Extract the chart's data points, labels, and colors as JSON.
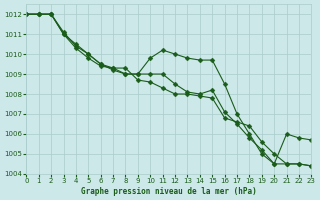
{
  "title": "Graphe pression niveau de la mer (hPa)",
  "bg_color": "#cce8e8",
  "grid_color": "#aacccc",
  "line_color": "#1a5c1a",
  "x_min": 0,
  "x_max": 23,
  "y_min": 1004,
  "y_max": 1012.5,
  "x_ticks": [
    0,
    1,
    2,
    3,
    4,
    5,
    6,
    7,
    8,
    9,
    10,
    11,
    12,
    13,
    14,
    15,
    16,
    17,
    18,
    19,
    20,
    21,
    22,
    23
  ],
  "y_ticks": [
    1004,
    1005,
    1006,
    1007,
    1008,
    1009,
    1010,
    1011,
    1012
  ],
  "line1": {
    "x": [
      0,
      1,
      2,
      3,
      4,
      5,
      6,
      7,
      8,
      9,
      10,
      11,
      12,
      13,
      14,
      15,
      16,
      17,
      18,
      19,
      20,
      21,
      22,
      23
    ],
    "y": [
      1012,
      1012,
      1012,
      1011.0,
      1010.5,
      1010.0,
      1009.5,
      1009.2,
      1009.0,
      1009.0,
      1009.8,
      1010.2,
      1010.0,
      1009.8,
      1009.7,
      1009.7,
      1008.5,
      1007.0,
      1006.0,
      1005.0,
      1004.5,
      1006.0,
      1005.8,
      1005.7
    ]
  },
  "line2": {
    "x": [
      0,
      1,
      2,
      3,
      4,
      5,
      6,
      7,
      8,
      9,
      10,
      11,
      12,
      13,
      14,
      15,
      16,
      17,
      18,
      19,
      20,
      21,
      22,
      23
    ],
    "y": [
      1012,
      1012,
      1012,
      1011.1,
      1010.4,
      1010.0,
      1009.5,
      1009.3,
      1009.0,
      1009.0,
      1009.0,
      1009.0,
      1008.5,
      1008.1,
      1008.0,
      1008.2,
      1007.1,
      1006.5,
      1005.8,
      1005.2,
      1004.5,
      1004.5,
      1004.5,
      1004.4
    ]
  },
  "line3": {
    "x": [
      0,
      1,
      2,
      3,
      4,
      5,
      6,
      7,
      8,
      9,
      10,
      11,
      12,
      13,
      14,
      15,
      16,
      17,
      18,
      19,
      20,
      21,
      22,
      23
    ],
    "y": [
      1012,
      1012,
      1012,
      1011.0,
      1010.3,
      1009.8,
      1009.4,
      1009.3,
      1009.3,
      1008.7,
      1008.6,
      1008.3,
      1008.0,
      1008.0,
      1007.9,
      1007.8,
      1006.8,
      1006.6,
      1006.4,
      1005.6,
      1005.0,
      1004.5,
      1004.5,
      1004.4
    ]
  }
}
